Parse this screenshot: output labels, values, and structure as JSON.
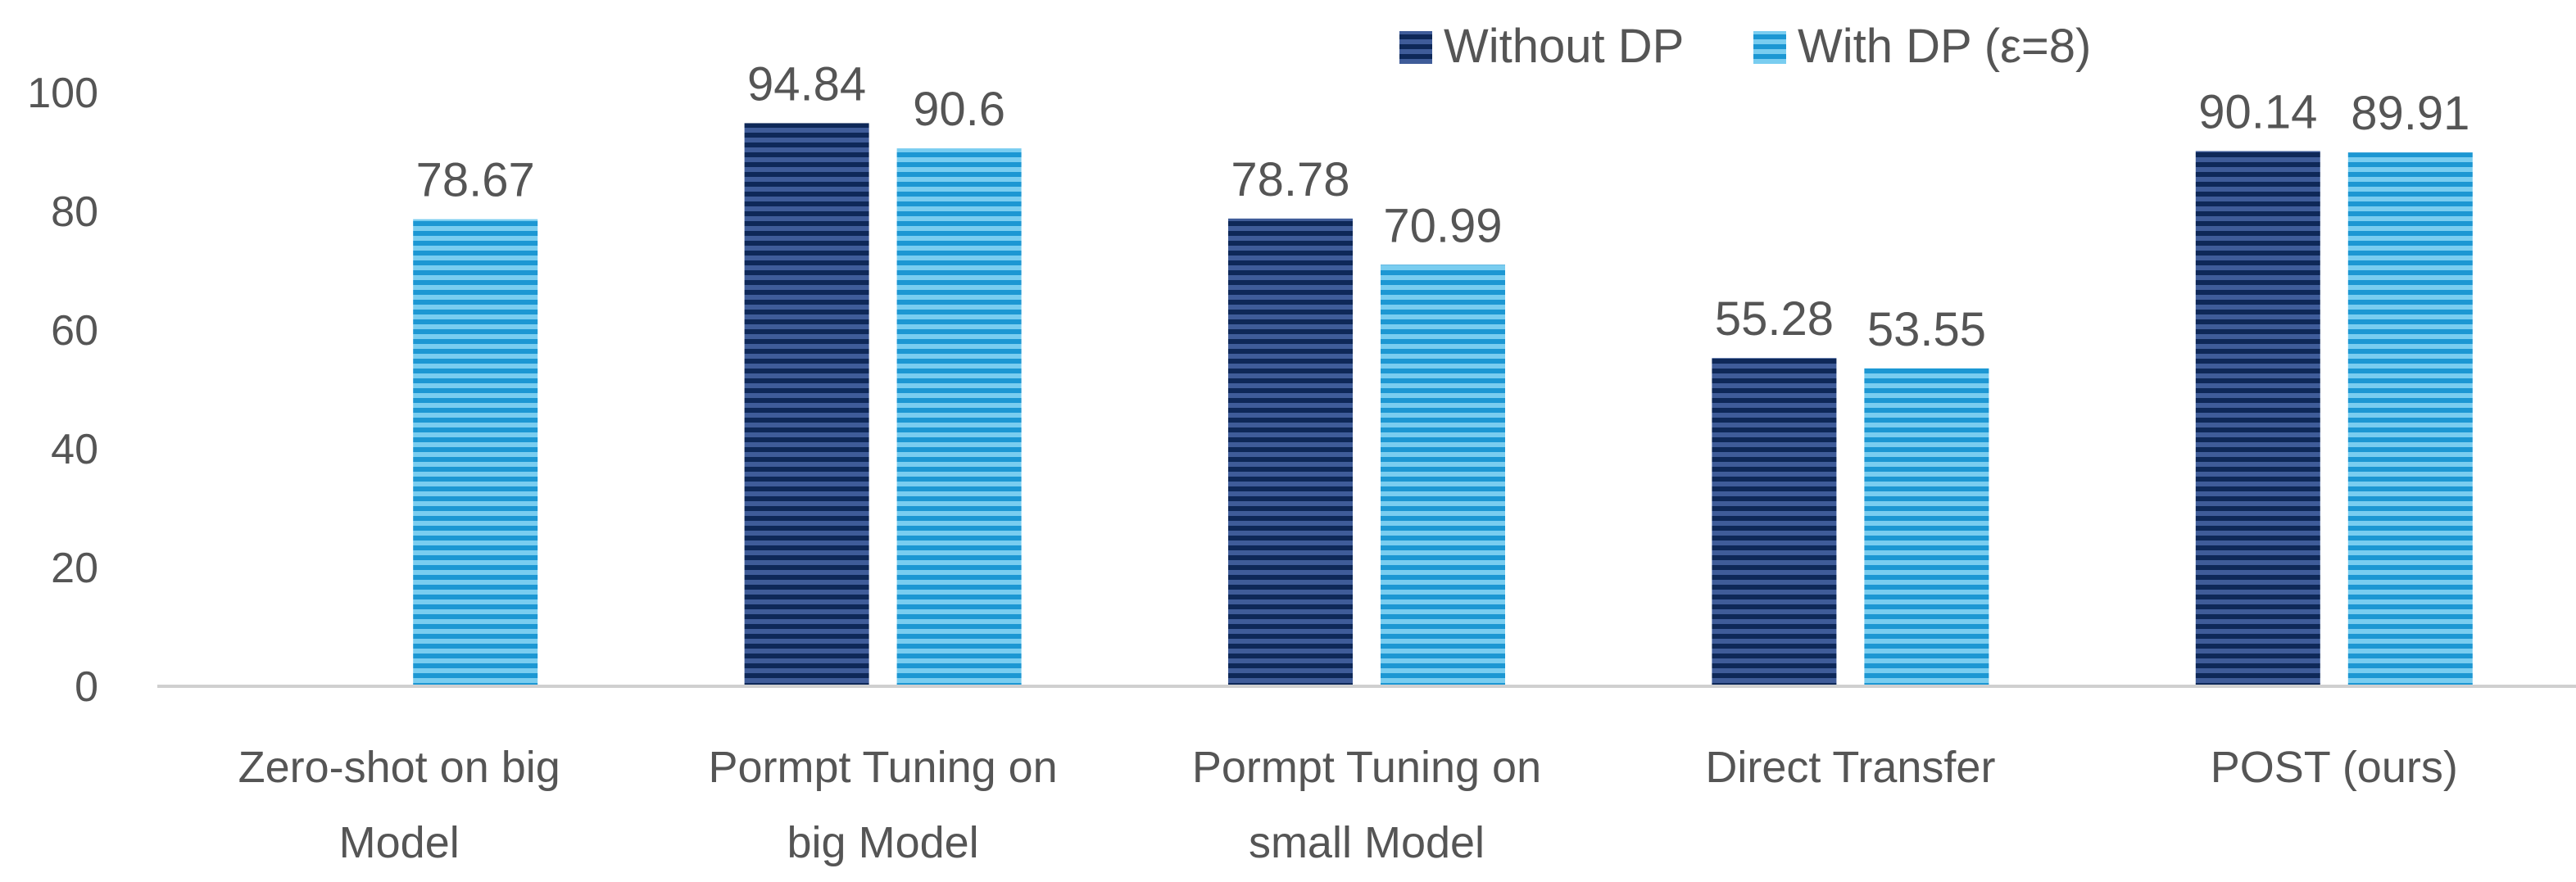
{
  "chart_data": {
    "type": "bar",
    "categories": [
      [
        "Zero-shot on big",
        "Model"
      ],
      [
        "Pormpt Tuning on",
        "big Model"
      ],
      [
        "Pormpt Tuning on",
        "small Model"
      ],
      [
        "Direct Transfer"
      ],
      [
        "POST (ours)"
      ]
    ],
    "series": [
      {
        "name": "Without DP",
        "color_light": "#3f5c99",
        "color_dark": "#0e2858",
        "values": [
          null,
          94.84,
          78.78,
          55.28,
          90.14
        ],
        "labels": [
          "",
          "94.84",
          "78.78",
          "55.28",
          "90.14"
        ]
      },
      {
        "name": "With DP (ε=8)",
        "color_light": "#79cdf0",
        "color_dark": "#1c97d3",
        "values": [
          78.67,
          90.6,
          70.99,
          53.55,
          89.91
        ],
        "labels": [
          "78.67",
          "90.6",
          "70.99",
          "53.55",
          "89.91"
        ]
      }
    ],
    "yticks": [
      "0",
      "20",
      "40",
      "60",
      "80",
      "100"
    ],
    "ylim": [
      0,
      100
    ],
    "grid": false,
    "legend": "top-right",
    "axis_color": "#d0d0d0"
  }
}
